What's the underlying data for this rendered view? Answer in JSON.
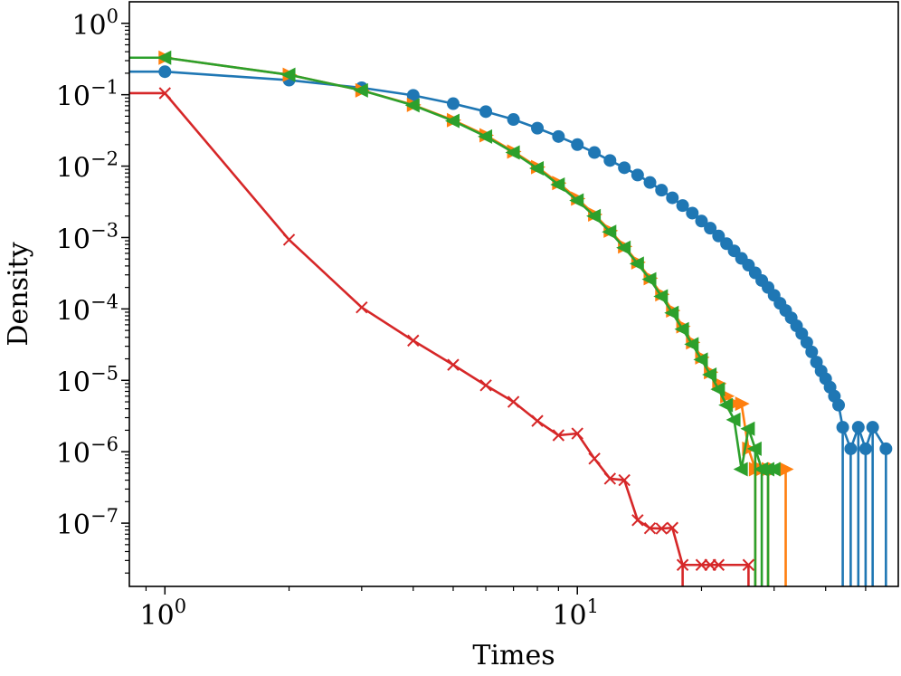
{
  "chart_data": {
    "type": "line",
    "xscale": "log",
    "yscale": "log",
    "xlabel": "Times",
    "ylabel": "Density",
    "xlim": [
      0.82,
      60
    ],
    "ylim": [
      1.3e-08,
      2.0
    ],
    "xticks": [
      {
        "value": 1,
        "base": "10",
        "exp": "0"
      },
      {
        "value": 10,
        "base": "10",
        "exp": "1"
      }
    ],
    "yticks": [
      {
        "value": 1,
        "base": "10",
        "exp": "0"
      },
      {
        "value": 0.1,
        "base": "10",
        "exp": "−1"
      },
      {
        "value": 0.01,
        "base": "10",
        "exp": "−2"
      },
      {
        "value": 0.001,
        "base": "10",
        "exp": "−3"
      },
      {
        "value": 0.0001,
        "base": "10",
        "exp": "−4"
      },
      {
        "value": 1e-05,
        "base": "10",
        "exp": "−5"
      },
      {
        "value": 1e-06,
        "base": "10",
        "exp": "−6"
      },
      {
        "value": 1e-07,
        "base": "10",
        "exp": "−7"
      }
    ],
    "series": [
      {
        "name": "series-blue",
        "color": "#1f77b4",
        "marker": "circle",
        "x": [
          0.82,
          1,
          2,
          3,
          4,
          5,
          6,
          7,
          8,
          9,
          10,
          11,
          12,
          13,
          14,
          15,
          16,
          17,
          18,
          19,
          20,
          21,
          22,
          23,
          24,
          25,
          26,
          27,
          28,
          29,
          30,
          31,
          32,
          33,
          34,
          35,
          36,
          37,
          38,
          39,
          40,
          41,
          42,
          43,
          44,
          46,
          48,
          50,
          52,
          56
        ],
        "y": [
          0.21,
          0.21,
          0.16,
          0.125,
          0.098,
          0.075,
          0.058,
          0.045,
          0.034,
          0.026,
          0.02,
          0.0155,
          0.012,
          0.0095,
          0.0075,
          0.0059,
          0.0046,
          0.0036,
          0.0028,
          0.0022,
          0.0017,
          0.00135,
          0.00105,
          0.00082,
          0.00065,
          0.00051,
          0.00041,
          0.00032,
          0.00025,
          0.0002,
          0.000155,
          0.00012,
          9.5e-05,
          7.5e-05,
          5.8e-05,
          4.5e-05,
          3.4e-05,
          2.5e-05,
          1.8e-05,
          1.35e-05,
          1.05e-05,
          8e-06,
          6e-06,
          4.5e-06,
          2.2e-06,
          1.1e-06,
          2.2e-06,
          1.1e-06,
          2.2e-06,
          1.1e-06
        ],
        "drop": [
          false,
          false,
          false,
          false,
          false,
          false,
          false,
          false,
          false,
          false,
          false,
          false,
          false,
          false,
          false,
          false,
          false,
          false,
          false,
          false,
          false,
          false,
          false,
          false,
          false,
          false,
          false,
          false,
          false,
          false,
          false,
          false,
          false,
          false,
          false,
          false,
          false,
          false,
          false,
          false,
          false,
          false,
          false,
          false,
          false,
          false,
          false,
          false,
          false,
          false
        ],
        "x_comment": "",
        "drops_after": [
          44,
          46,
          48,
          50,
          52,
          56
        ]
      },
      {
        "name": "series-orange",
        "color": "#ff7f0e",
        "marker": "triangle-right",
        "x": [
          0.82,
          1,
          2,
          3,
          4,
          5,
          6,
          7,
          8,
          9,
          10,
          11,
          12,
          13,
          14,
          15,
          16,
          17,
          18,
          19,
          20,
          21,
          22,
          23,
          24,
          25,
          26,
          27,
          28,
          29,
          30,
          32
        ],
        "y": [
          0.33,
          0.33,
          0.19,
          0.115,
          0.072,
          0.044,
          0.027,
          0.016,
          0.0097,
          0.0058,
          0.0035,
          0.0021,
          0.00125,
          0.00075,
          0.00045,
          0.00027,
          0.00016,
          9.5e-05,
          5.7e-05,
          3.4e-05,
          2.1e-05,
          1.3e-05,
          9e-06,
          6e-06,
          4.7e-06,
          4.7e-06,
          1.1e-06,
          5.7e-07,
          5.7e-07,
          5.7e-07,
          5.7e-07,
          5.7e-07
        ],
        "drops_after": [
          27,
          29,
          32
        ]
      },
      {
        "name": "series-green",
        "color": "#2ca02c",
        "marker": "triangle-left",
        "x": [
          0.82,
          1,
          2,
          3,
          4,
          5,
          6,
          7,
          8,
          9,
          10,
          11,
          12,
          13,
          14,
          15,
          16,
          17,
          18,
          19,
          20,
          21,
          22,
          23,
          24,
          25,
          26,
          27,
          28,
          29,
          30
        ],
        "y": [
          0.33,
          0.33,
          0.19,
          0.115,
          0.071,
          0.043,
          0.026,
          0.0155,
          0.0093,
          0.0055,
          0.0033,
          0.002,
          0.0012,
          0.00072,
          0.00043,
          0.00026,
          0.00015,
          8.8e-05,
          5.2e-05,
          3.2e-05,
          1.95e-05,
          1.2e-05,
          7.5e-06,
          4.5e-06,
          2.8e-06,
          5.7e-07,
          2.1e-06,
          1.1e-06,
          5.7e-07,
          5.7e-07,
          5.7e-07
        ],
        "drops_after": [
          27,
          28,
          29
        ]
      },
      {
        "name": "series-red",
        "color": "#d62728",
        "marker": "x",
        "x": [
          0.82,
          1,
          2,
          3,
          4,
          5,
          6,
          7,
          8,
          9,
          10,
          11,
          12,
          13,
          14,
          15,
          16,
          17,
          18,
          20,
          21,
          22,
          26
        ],
        "y": [
          0.105,
          0.105,
          0.00093,
          0.000105,
          3.6e-05,
          1.65e-05,
          8.5e-06,
          5e-06,
          2.7e-06,
          1.7e-06,
          1.8e-06,
          8e-07,
          4.2e-07,
          4e-07,
          1.1e-07,
          8.5e-08,
          8.4e-08,
          8.6e-08,
          2.6e-08,
          2.6e-08,
          2.6e-08,
          2.6e-08,
          2.6e-08
        ],
        "drops_after": [
          18,
          26
        ]
      }
    ]
  }
}
